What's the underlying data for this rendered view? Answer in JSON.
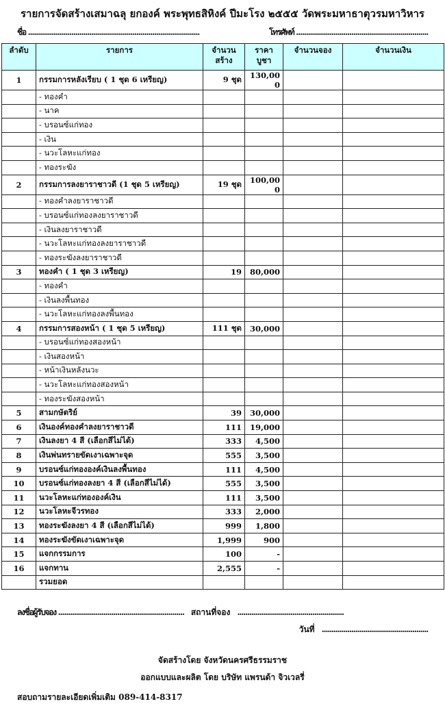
{
  "header": {
    "title": "รายการจัดสร้างเสมาฉลุ ยกองค์ พระพุทธสิหิงค์ ปีมะโรง ๒๕๕๕    วัดพระมหาธาตุวรมหาวิหาร",
    "name_label": "ชื่อ .......................................................................................",
    "phone_label": "โทรศัพท์ ..................................................................."
  },
  "table": {
    "columns": [
      "ลำดับ",
      "รายการ",
      "จำนวน\nสร้าง",
      "ราคา\nบูชา",
      "จำนวนจอง",
      "จำนวนเงิน"
    ],
    "rows": [
      {
        "no": "1",
        "item": "กรรมการหลังเรียบ  ( 1 ชุด 6 เหรียญ)",
        "qty": "9 ชุด",
        "price": "130,000"
      },
      {
        "no": "",
        "item": "- ทองคำ",
        "qty": "",
        "price": "",
        "sub": true
      },
      {
        "no": "",
        "item": "- นาค",
        "qty": "",
        "price": "",
        "sub": true
      },
      {
        "no": "",
        "item": "- บรอนซ์แก่ทอง",
        "qty": "",
        "price": "",
        "sub": true
      },
      {
        "no": "",
        "item": "- เงิน",
        "qty": "",
        "price": "",
        "sub": true
      },
      {
        "no": "",
        "item": "- นวะโลหะแก่ทอง",
        "qty": "",
        "price": "",
        "sub": true
      },
      {
        "no": "",
        "item": "- ทองระฆัง",
        "qty": "",
        "price": "",
        "sub": true
      },
      {
        "no": "2",
        "item": "กรรมการลงยาราชาวดี (1 ชุด 5 เหรียญ)",
        "qty": "19 ชุด",
        "price": "100,000"
      },
      {
        "no": "",
        "item": "- ทองคำลงยาราชาวดี",
        "qty": "",
        "price": "",
        "sub": true
      },
      {
        "no": "",
        "item": "- บรอนซ์แก่ทองลงยาราชาวดี",
        "qty": "",
        "price": "",
        "sub": true
      },
      {
        "no": "",
        "item": "- เงินลงยาราชาวดี",
        "qty": "",
        "price": "",
        "sub": true
      },
      {
        "no": "",
        "item": "- นวะโลหะแก่ทองลงยาราชาวดี",
        "qty": "",
        "price": "",
        "sub": true
      },
      {
        "no": "",
        "item": "- ทองระฆังลงยาราชาวดี",
        "qty": "",
        "price": "",
        "sub": true
      },
      {
        "no": "3",
        "item": "ทองคำ ( 1 ชุด 3 เหรียญ)",
        "qty": "19",
        "price": "80,000"
      },
      {
        "no": "",
        "item": "- ทองคำ",
        "qty": "",
        "price": "",
        "sub": true
      },
      {
        "no": "",
        "item": "- เงินลงพื้นทอง",
        "qty": "",
        "price": "",
        "sub": true
      },
      {
        "no": "",
        "item": "- นวะโลหะแก่ทองลงพื้นทอง",
        "qty": "",
        "price": "",
        "sub": true
      },
      {
        "no": "4",
        "item": "กรรมการสองหน้า ( 1 ชุด 5 เหรียญ)",
        "qty": "111 ชุด",
        "price": "30,000"
      },
      {
        "no": "",
        "item": "- บรอนซ์แก่ทองสองหน้า",
        "qty": "",
        "price": "",
        "sub": true
      },
      {
        "no": "",
        "item": "- เงินสองหน้า",
        "qty": "",
        "price": "",
        "sub": true
      },
      {
        "no": "",
        "item": "- หน้าเงินหลังนวะ",
        "qty": "",
        "price": "",
        "sub": true
      },
      {
        "no": "",
        "item": "- นวะโลหะแก่ทองสองหน้า",
        "qty": "",
        "price": "",
        "sub": true
      },
      {
        "no": "",
        "item": "- ทองระฆังสองหน้า",
        "qty": "",
        "price": "",
        "sub": true
      },
      {
        "no": "5",
        "item": "สามกษัตริย์",
        "qty": "39",
        "price": "30,000"
      },
      {
        "no": "6",
        "item": "เงินองค์ทองคำลงยาราชาวดี",
        "qty": "111",
        "price": "19,000"
      },
      {
        "no": "7",
        "item": "เงินลงยา 4 สี   (เลือกสีไม่ได้)",
        "qty": "333",
        "price": "4,500"
      },
      {
        "no": "8",
        "item": "เงินพ่นทรายขัดเงาเฉพาะจุด",
        "qty": "555",
        "price": "3,500"
      },
      {
        "no": "9",
        "item": "บรอนซ์แก่ทององค์เงินลงพื้นทอง",
        "qty": "111",
        "price": "4,500"
      },
      {
        "no": "10",
        "item": "บรอนซ์แก่ทองลงยา 4 สี (เลือกสีไม่ได้)",
        "qty": "555",
        "price": "3,500"
      },
      {
        "no": "11",
        "item": "นวะโลหะแก่ทององค์เงิน",
        "qty": "111",
        "price": "3,500"
      },
      {
        "no": "12",
        "item": "นวะโลหะจีวรทอง",
        "qty": "333",
        "price": "2,000"
      },
      {
        "no": "13",
        "item": "ทองระฆังลงยา 4 สี (เลือกสีไม่ได้)",
        "qty": "999",
        "price": "1,800"
      },
      {
        "no": "14",
        "item": "ทองระฆังขัดเงาเฉพาะจุด",
        "qty": "1,999",
        "price": "900"
      },
      {
        "no": "15",
        "item": "แจกกรรมการ",
        "qty": "100",
        "price": "-"
      },
      {
        "no": "16",
        "item": "แจกทาน",
        "qty": "2,555",
        "price": "-"
      },
      {
        "no": "",
        "item": "  รวมยอด",
        "qty": "",
        "price": ""
      }
    ]
  },
  "footer": {
    "signer_label": "ลงชื่อผู้รับจอง ................................................................",
    "place_label": "สถานที่จอง",
    "place_dots": "......................................................",
    "date_label": "วันที่",
    "date_dots": "......................................................",
    "made_by": "จัดสร้างโดย จังหวัดนครศรีธรรมราช",
    "designed_by": "ออกแบบและผลิต โดย บริษัท แพรนด้า จิวเวลรี่",
    "contact": "สอบถามรายละเอียดเพิ่มเติม   089-414-8317"
  },
  "colors": {
    "header_bg": "#ccffff"
  }
}
